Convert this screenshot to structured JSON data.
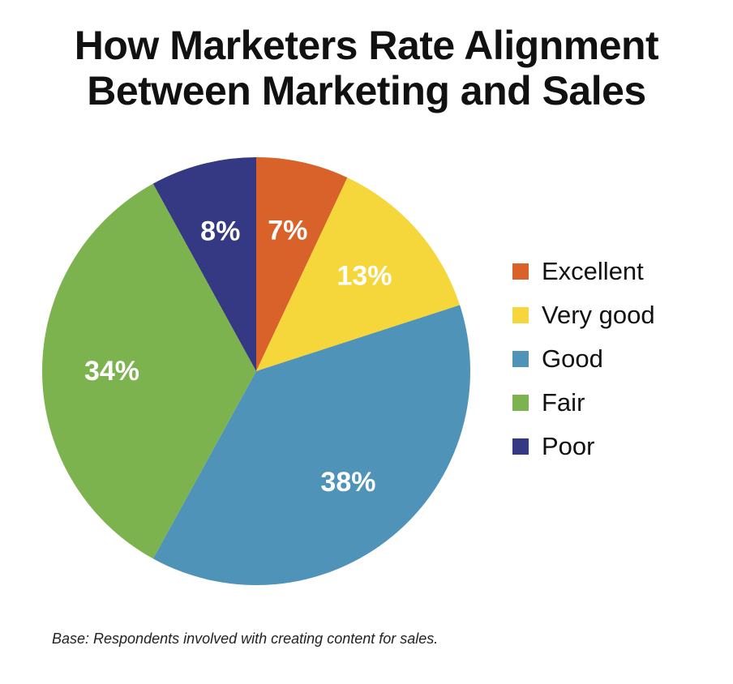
{
  "chart_data": {
    "type": "pie",
    "title_lines": [
      "How Marketers Rate Alignment",
      "Between Marketing and Sales"
    ],
    "slices": [
      {
        "name": "Excellent",
        "value": 7,
        "label": "7%",
        "color": "#d9622b"
      },
      {
        "name": "Very good",
        "value": 13,
        "label": "13%",
        "color": "#f5d63b"
      },
      {
        "name": "Good",
        "value": 38,
        "label": "38%",
        "color": "#5093b8"
      },
      {
        "name": "Fair",
        "value": 34,
        "label": "34%",
        "color": "#7db34f"
      },
      {
        "name": "Poor",
        "value": 8,
        "label": "8%",
        "color": "#353883"
      }
    ],
    "start": "12 o'clock",
    "direction": "clockwise",
    "legend_placement": "right",
    "footnote": "Base: Respondents involved with creating content for sales."
  }
}
